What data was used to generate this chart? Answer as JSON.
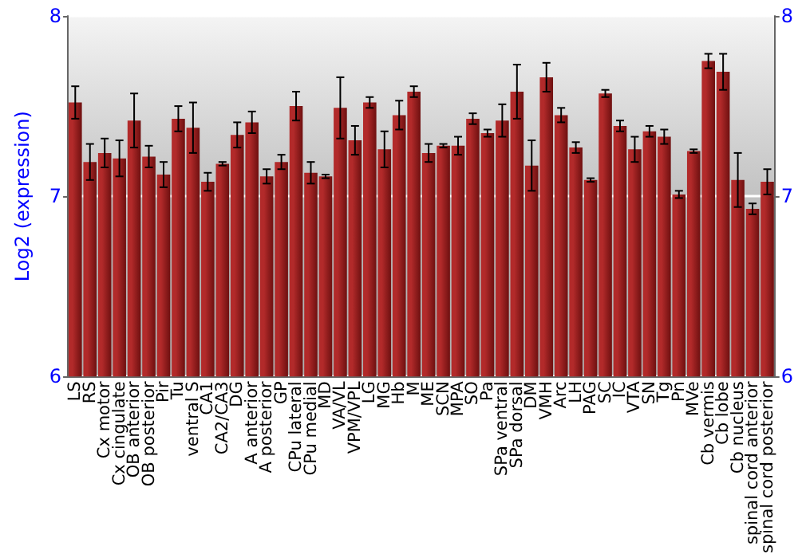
{
  "chart_data": {
    "type": "bar",
    "ylabel": "Log2 (expression)",
    "categories": [
      "LS",
      "RS",
      "Cx motor",
      "Cx cingulate",
      "OB anterior",
      "OB posterior",
      "Pir",
      "Tu",
      "ventral S",
      "CA1",
      "CA2/CA3",
      "DG",
      "A anterior",
      "A posterior",
      "GP",
      "CPu lateral",
      "CPu medial",
      "MD",
      "VA/VL",
      "VPM/VPL",
      "LG",
      "MG",
      "Hb",
      "M",
      "ME",
      "SCN",
      "MPA",
      "SO",
      "Pa",
      "SPa ventral",
      "SPa dorsal",
      "DM",
      "VMH",
      "Arc",
      "LH",
      "PAG",
      "SC",
      "IC",
      "VTA",
      "SN",
      "Tg",
      "Pn",
      "MVe",
      "Cb vermis",
      "Cb lobe",
      "Cb nucleus",
      "spinal cord anterior",
      "spinal cord posterior"
    ],
    "series": [
      {
        "color": "#b22a2a",
        "values": [
          7.52,
          7.19,
          7.24,
          7.21,
          7.42,
          7.22,
          7.12,
          7.43,
          7.38,
          7.08,
          7.18,
          7.34,
          7.41,
          7.11,
          7.19,
          7.5,
          7.13,
          7.11,
          7.49,
          7.31,
          7.52,
          7.26,
          7.45,
          7.58,
          7.24,
          7.28,
          7.28,
          7.43,
          7.35,
          7.42,
          7.58,
          7.17,
          7.66,
          7.45,
          7.27,
          7.09,
          7.57,
          7.39,
          7.26,
          7.36,
          7.33,
          7.01,
          7.25,
          7.75,
          7.69,
          7.09,
          6.93,
          7.08
        ],
        "errors": [
          0.09,
          0.1,
          0.08,
          0.1,
          0.15,
          0.06,
          0.07,
          0.07,
          0.14,
          0.05,
          0.01,
          0.07,
          0.06,
          0.04,
          0.04,
          0.08,
          0.06,
          0.01,
          0.17,
          0.08,
          0.03,
          0.1,
          0.08,
          0.03,
          0.05,
          0.01,
          0.05,
          0.03,
          0.02,
          0.09,
          0.15,
          0.14,
          0.08,
          0.04,
          0.03,
          0.01,
          0.02,
          0.03,
          0.07,
          0.03,
          0.04,
          0.02,
          0.01,
          0.04,
          0.1,
          0.15,
          0.03,
          0.07
        ]
      }
    ],
    "ylim": [
      6,
      8
    ],
    "yticks": [
      6,
      7,
      8
    ],
    "y2lim": [
      6,
      8
    ],
    "y2ticks": [
      6,
      7,
      8
    ],
    "grid": "y"
  }
}
